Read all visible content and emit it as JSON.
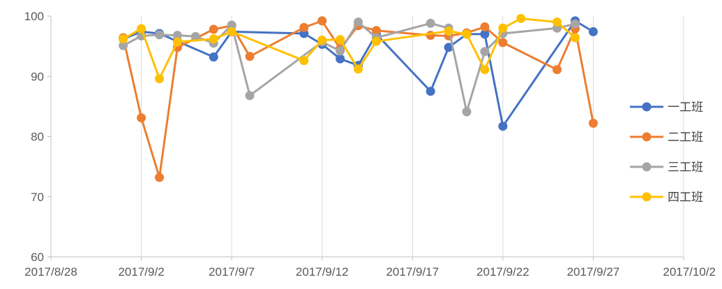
{
  "chart_data": {
    "type": "line",
    "title": "",
    "xlabel": "",
    "ylabel": "",
    "x_axis_type": "date",
    "xlim": [
      "2017-08-28",
      "2017-10-02"
    ],
    "ylim": [
      60,
      100
    ],
    "x_ticks": [
      "2017-08-28",
      "2017-09-02",
      "2017-09-07",
      "2017-09-12",
      "2017-09-17",
      "2017-09-22",
      "2017-09-27",
      "2017-10-02"
    ],
    "x_tick_labels": [
      "2017/8/28",
      "2017/9/2",
      "2017/9/7",
      "2017/9/12",
      "2017/9/17",
      "2017/9/22",
      "2017/9/27",
      "2017/10/2"
    ],
    "y_ticks": [
      60,
      70,
      80,
      90,
      100
    ],
    "y_tick_labels": [
      "60",
      "70",
      "80",
      "90",
      "100"
    ],
    "grid": {
      "vertical": true,
      "horizontal": false
    },
    "legend_position": "right",
    "series": [
      {
        "name": "一工班",
        "color": "#4472C4",
        "points": [
          [
            "2017-09-01",
            96.2
          ],
          [
            "2017-09-02",
            97.4
          ],
          [
            "2017-09-03",
            97.1
          ],
          [
            "2017-09-04",
            95.8
          ],
          [
            "2017-09-06",
            93.2
          ],
          [
            "2017-09-07",
            97.4
          ],
          [
            "2017-09-11",
            97.1
          ],
          [
            "2017-09-12",
            95.3
          ],
          [
            "2017-09-13",
            92.9
          ],
          [
            "2017-09-14",
            91.8
          ],
          [
            "2017-09-15",
            97.0
          ],
          [
            "2017-09-18",
            87.5
          ],
          [
            "2017-09-19",
            94.8
          ],
          [
            "2017-09-20",
            97.0
          ],
          [
            "2017-09-21",
            97.0
          ],
          [
            "2017-09-22",
            81.7
          ],
          [
            "2017-09-26",
            99.2
          ],
          [
            "2017-09-27",
            97.4
          ]
        ]
      },
      {
        "name": "二工班",
        "color": "#ED7D31",
        "points": [
          [
            "2017-09-01",
            96.4
          ],
          [
            "2017-09-02",
            83.1
          ],
          [
            "2017-09-03",
            73.2
          ],
          [
            "2017-09-04",
            94.8
          ],
          [
            "2017-09-06",
            97.8
          ],
          [
            "2017-09-07",
            98.4
          ],
          [
            "2017-09-08",
            93.3
          ],
          [
            "2017-09-11",
            98.1
          ],
          [
            "2017-09-12",
            99.2
          ],
          [
            "2017-09-13",
            94.6
          ],
          [
            "2017-09-14",
            98.4
          ],
          [
            "2017-09-15",
            97.6
          ],
          [
            "2017-09-18",
            96.8
          ],
          [
            "2017-09-19",
            96.7
          ],
          [
            "2017-09-20",
            97.2
          ],
          [
            "2017-09-21",
            98.2
          ],
          [
            "2017-09-22",
            95.6
          ],
          [
            "2017-09-25",
            91.1
          ],
          [
            "2017-09-26",
            97.9
          ],
          [
            "2017-09-27",
            82.2
          ]
        ]
      },
      {
        "name": "三工班",
        "color": "#A5A5A5",
        "points": [
          [
            "2017-09-01",
            95.1
          ],
          [
            "2017-09-02",
            96.7
          ],
          [
            "2017-09-03",
            96.9
          ],
          [
            "2017-09-04",
            96.8
          ],
          [
            "2017-09-05",
            96.6
          ],
          [
            "2017-09-06",
            95.5
          ],
          [
            "2017-09-07",
            98.5
          ],
          [
            "2017-09-08",
            86.8
          ],
          [
            "2017-09-12",
            95.7
          ],
          [
            "2017-09-13",
            94.2
          ],
          [
            "2017-09-14",
            99.0
          ],
          [
            "2017-09-15",
            96.4
          ],
          [
            "2017-09-18",
            98.8
          ],
          [
            "2017-09-19",
            98.0
          ],
          [
            "2017-09-20",
            84.1
          ],
          [
            "2017-09-21",
            94.1
          ],
          [
            "2017-09-22",
            97.1
          ],
          [
            "2017-09-25",
            98.0
          ],
          [
            "2017-09-26",
            98.7
          ]
        ]
      },
      {
        "name": "四工班",
        "color": "#FFC000",
        "points": [
          [
            "2017-09-01",
            96.2
          ],
          [
            "2017-09-02",
            97.9
          ],
          [
            "2017-09-03",
            89.6
          ],
          [
            "2017-09-04",
            95.7
          ],
          [
            "2017-09-06",
            96.2
          ],
          [
            "2017-09-07",
            97.4
          ],
          [
            "2017-09-11",
            92.6
          ],
          [
            "2017-09-12",
            96.0
          ],
          [
            "2017-09-13",
            96.1
          ],
          [
            "2017-09-14",
            91.2
          ],
          [
            "2017-09-15",
            95.8
          ],
          [
            "2017-09-19",
            97.5
          ],
          [
            "2017-09-20",
            97.0
          ],
          [
            "2017-09-21",
            91.1
          ],
          [
            "2017-09-22",
            98.0
          ],
          [
            "2017-09-23",
            99.6
          ],
          [
            "2017-09-25",
            99.0
          ],
          [
            "2017-09-26",
            96.4
          ]
        ]
      }
    ]
  }
}
